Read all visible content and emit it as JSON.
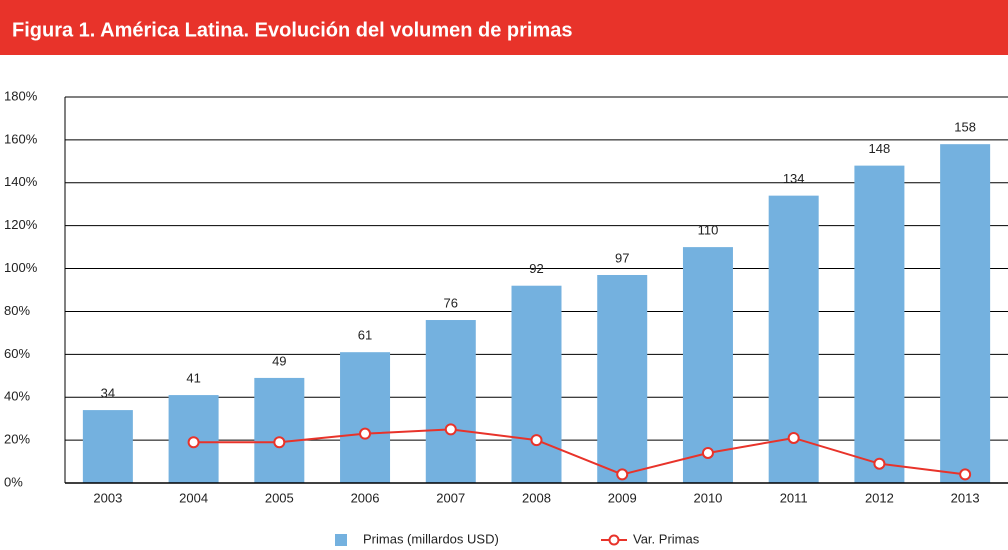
{
  "chart_data": {
    "type": "bar",
    "title": "Figura 1.  América Latina. Evolución del volumen de primas",
    "categories": [
      "2003",
      "2004",
      "2005",
      "2006",
      "2007",
      "2008",
      "2009",
      "2010",
      "2011",
      "2012",
      "2013"
    ],
    "series": [
      {
        "name": "Primas (millardos USD)",
        "type": "bar",
        "color": "#74b1df",
        "values": [
          34,
          41,
          49,
          61,
          76,
          92,
          97,
          110,
          134,
          148,
          158
        ]
      },
      {
        "name": "Var. Primas",
        "type": "line",
        "color": "#e8332a",
        "values": [
          null,
          19,
          19,
          23,
          25,
          20,
          4,
          14,
          21,
          9,
          4
        ]
      }
    ],
    "ylim": [
      0,
      180
    ],
    "yticks": [
      {
        "value": 0,
        "label": "0%"
      },
      {
        "value": 20,
        "label": "20%"
      },
      {
        "value": 40,
        "label": "40%"
      },
      {
        "value": 60,
        "label": "60%"
      },
      {
        "value": 80,
        "label": "80%"
      },
      {
        "value": 100,
        "label": "100%"
      },
      {
        "value": 120,
        "label": "120%"
      },
      {
        "value": 140,
        "label": "140%"
      },
      {
        "value": 160,
        "label": "160%"
      },
      {
        "value": 180,
        "label": "180%"
      }
    ],
    "grid": true,
    "legend": "bottom"
  }
}
